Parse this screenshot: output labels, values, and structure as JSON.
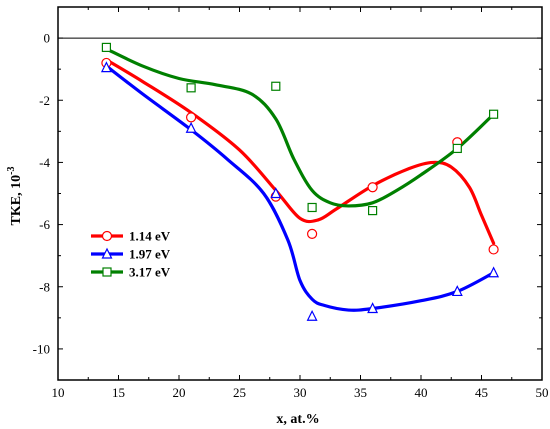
{
  "chart_data": {
    "type": "scatter",
    "xlabel": "x, at.%",
    "ylabel": "TKE, 10",
    "ylabel_exponent": "-3",
    "xlim": [
      10,
      50
    ],
    "ylim": [
      -11,
      1
    ],
    "x_ticks": [
      10,
      15,
      20,
      25,
      30,
      35,
      40,
      45,
      50
    ],
    "y_ticks": [
      0,
      -2,
      -4,
      -6,
      -8,
      -10
    ],
    "zero_line": true,
    "grid": false,
    "legend_position": "center-left",
    "series": [
      {
        "name": "1.14 eV",
        "color": "#ff0000",
        "marker": "circle",
        "points": [
          [
            14,
            -0.8
          ],
          [
            21,
            -2.55
          ],
          [
            28,
            -5.1
          ],
          [
            31,
            -6.3
          ],
          [
            36,
            -4.8
          ],
          [
            43,
            -3.35
          ],
          [
            46,
            -6.8
          ]
        ],
        "curve": [
          [
            14,
            -0.7
          ],
          [
            17,
            -1.4
          ],
          [
            21,
            -2.4
          ],
          [
            25,
            -3.6
          ],
          [
            28,
            -4.9
          ],
          [
            30,
            -5.8
          ],
          [
            31.5,
            -5.85
          ],
          [
            33,
            -5.5
          ],
          [
            36,
            -4.75
          ],
          [
            39,
            -4.2
          ],
          [
            41,
            -4.0
          ],
          [
            42.5,
            -4.15
          ],
          [
            44,
            -4.8
          ],
          [
            45,
            -5.7
          ],
          [
            46,
            -6.6
          ]
        ]
      },
      {
        "name": "1.97 eV",
        "color": "#0000ff",
        "marker": "triangle",
        "points": [
          [
            14,
            -0.95
          ],
          [
            21,
            -2.9
          ],
          [
            28,
            -5.0
          ],
          [
            31,
            -8.95
          ],
          [
            36,
            -8.7
          ],
          [
            43,
            -8.15
          ],
          [
            46,
            -7.55
          ]
        ],
        "curve": [
          [
            14,
            -0.9
          ],
          [
            17,
            -1.8
          ],
          [
            21,
            -2.95
          ],
          [
            24,
            -3.9
          ],
          [
            27,
            -5.0
          ],
          [
            29,
            -6.5
          ],
          [
            30,
            -7.8
          ],
          [
            31,
            -8.4
          ],
          [
            32,
            -8.6
          ],
          [
            34,
            -8.75
          ],
          [
            36,
            -8.7
          ],
          [
            40,
            -8.45
          ],
          [
            43,
            -8.15
          ],
          [
            46,
            -7.55
          ]
        ]
      },
      {
        "name": "3.17 eV",
        "color": "#008000",
        "marker": "square",
        "points": [
          [
            14,
            -0.3
          ],
          [
            21,
            -1.6
          ],
          [
            28,
            -1.55
          ],
          [
            31,
            -5.45
          ],
          [
            36,
            -5.55
          ],
          [
            43,
            -3.55
          ],
          [
            46,
            -2.45
          ]
        ],
        "curve": [
          [
            14,
            -0.35
          ],
          [
            17,
            -0.9
          ],
          [
            20,
            -1.3
          ],
          [
            23,
            -1.5
          ],
          [
            26,
            -1.8
          ],
          [
            28,
            -2.6
          ],
          [
            29.5,
            -3.9
          ],
          [
            31,
            -4.9
          ],
          [
            32.5,
            -5.3
          ],
          [
            34,
            -5.4
          ],
          [
            36,
            -5.3
          ],
          [
            38,
            -4.9
          ],
          [
            40,
            -4.4
          ],
          [
            43,
            -3.55
          ],
          [
            46,
            -2.45
          ]
        ]
      }
    ]
  }
}
